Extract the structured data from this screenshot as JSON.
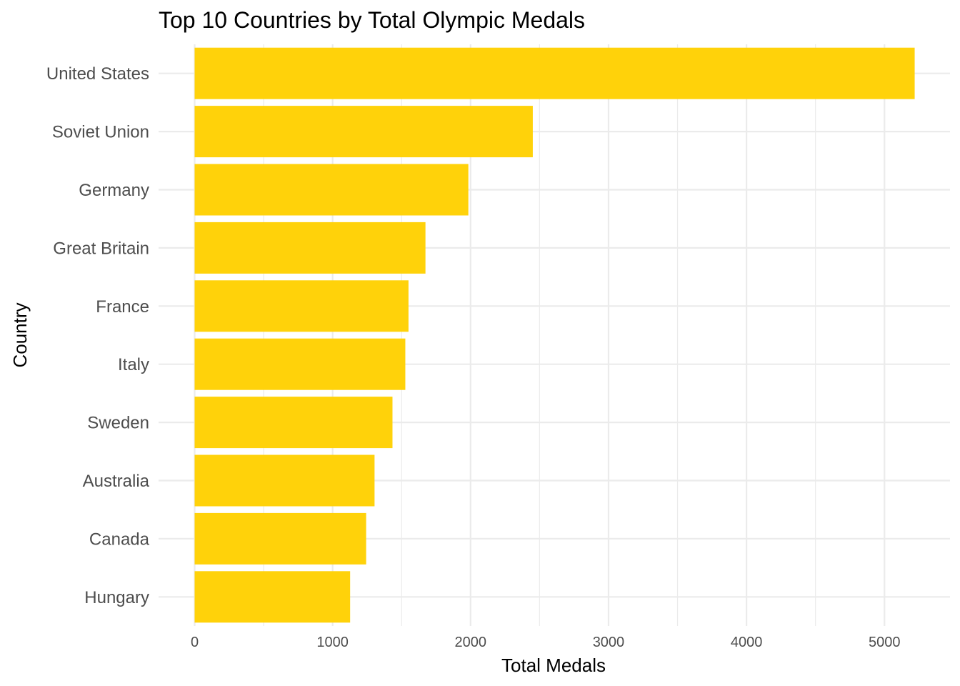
{
  "chart_data": {
    "type": "bar",
    "orientation": "horizontal",
    "title": "Top 10 Countries by Total Olympic Medals",
    "xlabel": "Total Medals",
    "ylabel": "Country",
    "categories": [
      "United States",
      "Soviet Union",
      "Germany",
      "Great Britain",
      "France",
      "Italy",
      "Sweden",
      "Australia",
      "Canada",
      "Hungary"
    ],
    "values": [
      5219,
      2451,
      1984,
      1673,
      1550,
      1527,
      1434,
      1304,
      1243,
      1127
    ],
    "x_ticks": [
      0,
      1000,
      2000,
      3000,
      4000,
      5000
    ],
    "xlim": [
      0,
      5480
    ],
    "grid": true,
    "colors": {
      "bar": "#FFD20A",
      "grid": "#EBEBEB",
      "tick": "#4D4D4D",
      "background": "#FFFFFF"
    }
  }
}
